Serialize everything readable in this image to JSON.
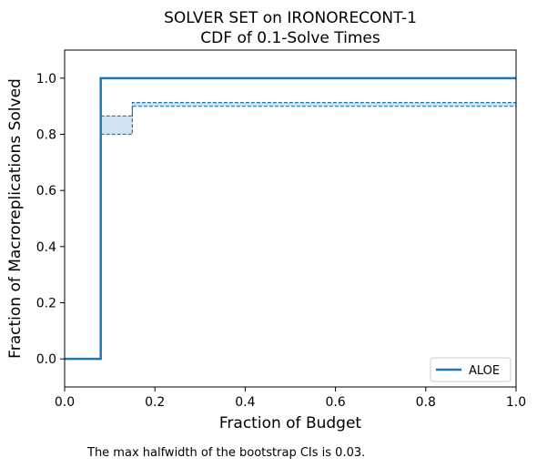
{
  "chart_data": {
    "type": "line",
    "title_lines": [
      "SOLVER SET on IRONORECONT-1",
      "CDF of 0.1-Solve Times"
    ],
    "xlabel": "Fraction of Budget",
    "ylabel": "Fraction of Macroreplications Solved",
    "xlim": [
      0.0,
      1.0
    ],
    "ylim": [
      -0.1,
      1.1
    ],
    "x_ticks": [
      0.0,
      0.2,
      0.4,
      0.6,
      0.8,
      1.0
    ],
    "x_tick_labels": [
      "0.0",
      "0.2",
      "0.4",
      "0.6",
      "0.8",
      "1.0"
    ],
    "y_ticks": [
      0.0,
      0.2,
      0.4,
      0.6,
      0.8,
      1.0
    ],
    "y_tick_labels": [
      "0.0",
      "0.2",
      "0.4",
      "0.6",
      "0.8",
      "1.0"
    ],
    "grid": false,
    "legend_position": "lower-right",
    "series": [
      {
        "name": "ALOE",
        "color": "#1f77b4",
        "step_x": [
          0.0,
          0.08,
          0.08,
          1.0
        ],
        "step_y": [
          0.0,
          0.0,
          1.0,
          1.0
        ],
        "ci_lower": {
          "x": [
            0.08,
            0.15,
            0.15,
            1.0
          ],
          "y": [
            0.8,
            0.8,
            0.9,
            0.9
          ]
        },
        "ci_upper": {
          "x": [
            0.08,
            0.15,
            0.15,
            1.0
          ],
          "y": [
            0.865,
            0.865,
            0.913,
            0.913
          ]
        }
      }
    ],
    "footnote": "The max halfwidth of the bootstrap CIs is 0.03."
  }
}
